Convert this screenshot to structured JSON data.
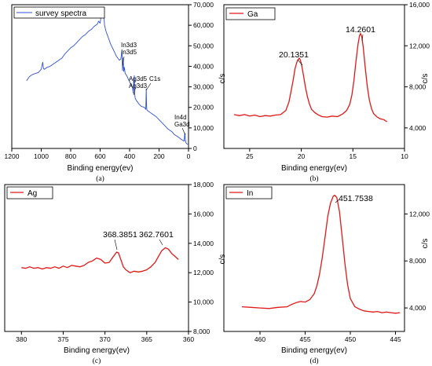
{
  "colors": {
    "survey": "#2f4fd6",
    "peak": "#e01818",
    "axis": "#000000"
  },
  "chart_data": [
    {
      "type": "line",
      "caption": "(a)",
      "legend": [
        "survey spectra"
      ],
      "xlabel": "Binding energy(ev)",
      "ylabel": "c/s",
      "xlim": [
        1200,
        0
      ],
      "ylim": [
        0,
        70000
      ],
      "xticks": [
        1200,
        1000,
        800,
        600,
        400,
        200,
        0
      ],
      "yticks": [
        0,
        10000,
        20000,
        30000,
        40000,
        50000,
        60000,
        70000
      ],
      "ytick_labels": [
        "0",
        "10,000",
        "20,000",
        "30,000",
        "40,000",
        "50,000",
        "60,000",
        "70,000"
      ],
      "series": [
        {
          "color": "#2f4fd6",
          "x": [
            1100,
            1080,
            1060,
            1040,
            1020,
            1000,
            990,
            985,
            980,
            960,
            940,
            920,
            900,
            880,
            860,
            840,
            820,
            800,
            780,
            760,
            740,
            720,
            700,
            680,
            660,
            640,
            620,
            610,
            600,
            595,
            590,
            585,
            580,
            575,
            570,
            560,
            550,
            540,
            530,
            520,
            510,
            500,
            490,
            480,
            470,
            460,
            452,
            448,
            444,
            440,
            436,
            430,
            420,
            410,
            400,
            390,
            380,
            375,
            372,
            370,
            368,
            366,
            362,
            355,
            345,
            335,
            320,
            300,
            290,
            287,
            285,
            283,
            280,
            270,
            260,
            250,
            240,
            230,
            220,
            200,
            180,
            160,
            140,
            120,
            110,
            100,
            90,
            80,
            70,
            60,
            50,
            40,
            30,
            25,
            22,
            20,
            18,
            15,
            10,
            5
          ],
          "y": [
            33000,
            35000,
            36000,
            36500,
            37000,
            38500,
            42000,
            39000,
            38500,
            39500,
            40000,
            41000,
            42000,
            43000,
            44000,
            46000,
            47500,
            49000,
            50000,
            51500,
            53000,
            54500,
            55500,
            57000,
            58000,
            59500,
            60500,
            62000,
            61000,
            63500,
            64500,
            64000,
            66000,
            65000,
            60000,
            57000,
            55000,
            53000,
            51000,
            49500,
            48000,
            46500,
            45000,
            44000,
            43000,
            43500,
            47500,
            38000,
            44000,
            37500,
            39500,
            36500,
            35500,
            34000,
            32500,
            31000,
            29500,
            27000,
            34500,
            30000,
            35500,
            27000,
            24500,
            23500,
            22500,
            21500,
            20500,
            20000,
            19000,
            29000,
            21000,
            19000,
            18500,
            18000,
            17500,
            17000,
            16500,
            16000,
            15500,
            14000,
            12500,
            11000,
            9500,
            8500,
            8000,
            7000,
            6500,
            6000,
            5500,
            5000,
            4500,
            4000,
            3500,
            7500,
            4500,
            3500,
            3000,
            2500,
            2200,
            2000
          ]
        }
      ],
      "annotations": [
        "In3d3",
        "In3d5",
        "Ag3d5",
        "Ag3d3",
        "C1s",
        "In4d",
        "Ga3d"
      ]
    },
    {
      "type": "line",
      "caption": "(b)",
      "legend": [
        "Ga"
      ],
      "xlabel": "Binding energy(ev)",
      "ylabel": "c/s",
      "xlim": [
        27.5,
        10
      ],
      "ylim": [
        2000,
        16000
      ],
      "xticks": [
        25,
        20,
        15,
        10
      ],
      "yticks": [
        4000,
        8000,
        12000,
        16000
      ],
      "ytick_labels": [
        "4,000",
        "8,000",
        "12,000",
        "16,000"
      ],
      "series": [
        {
          "color": "#e01818",
          "x": [
            26.5,
            26.0,
            25.5,
            25.0,
            24.5,
            24.0,
            23.5,
            23.0,
            22.5,
            22.0,
            21.5,
            21.2,
            21.0,
            20.8,
            20.6,
            20.4,
            20.2,
            20.13,
            20.0,
            19.8,
            19.6,
            19.4,
            19.2,
            19.0,
            18.7,
            18.4,
            18.0,
            17.5,
            17.0,
            16.5,
            16.0,
            15.6,
            15.3,
            15.1,
            14.9,
            14.7,
            14.5,
            14.35,
            14.26,
            14.15,
            14.0,
            13.8,
            13.6,
            13.4,
            13.2,
            13.0,
            12.7,
            12.4,
            12.0,
            11.7
          ],
          "y": [
            5300,
            5200,
            5300,
            5150,
            5250,
            5100,
            5200,
            5150,
            5250,
            5300,
            5700,
            6500,
            7500,
            8600,
            9800,
            10500,
            10800,
            10700,
            10300,
            9200,
            8000,
            7000,
            6300,
            5800,
            5500,
            5300,
            5100,
            5050,
            5150,
            5100,
            5350,
            5700,
            6300,
            7200,
            8600,
            10500,
            12200,
            13000,
            13200,
            12900,
            11900,
            9800,
            8000,
            6700,
            5900,
            5400,
            5100,
            4900,
            4800,
            4600
          ]
        }
      ],
      "annotations": [
        "20.1351",
        "14.2601"
      ]
    },
    {
      "type": "line",
      "caption": "(c)",
      "legend": [
        "Ag"
      ],
      "xlabel": "Binding energy(ev)",
      "ylabel": "c/s",
      "xlim": [
        382,
        360
      ],
      "ylim": [
        8000,
        18000
      ],
      "xticks": [
        380,
        375,
        370,
        365,
        360
      ],
      "yticks": [
        8000,
        10000,
        12000,
        14000,
        16000,
        18000
      ],
      "ytick_labels": [
        "8,000",
        "10,000",
        "12,000",
        "14,000",
        "16,000",
        "18,000"
      ],
      "series": [
        {
          "color": "#e01818",
          "x": [
            380,
            379.5,
            379,
            378.5,
            378,
            377.5,
            377,
            376.5,
            376,
            375.5,
            375,
            374.5,
            374,
            373.5,
            373,
            372.5,
            372,
            371.5,
            371,
            370.5,
            370,
            369.5,
            369,
            368.6,
            368.39,
            368.1,
            367.8,
            367.5,
            367,
            366.5,
            366,
            365.5,
            365,
            364.5,
            364,
            363.6,
            363.2,
            362.76,
            362.4,
            362,
            361.6,
            361.2
          ],
          "y": [
            12350,
            12300,
            12400,
            12300,
            12350,
            12250,
            12350,
            12300,
            12400,
            12300,
            12450,
            12350,
            12500,
            12450,
            12400,
            12500,
            12700,
            12800,
            13000,
            12900,
            12650,
            12700,
            13100,
            13400,
            13350,
            12900,
            12400,
            12200,
            12000,
            12100,
            12050,
            12100,
            12200,
            12400,
            12700,
            13100,
            13500,
            13700,
            13600,
            13300,
            13100,
            12900
          ]
        }
      ],
      "annotations": [
        "368.3851",
        "362.7601"
      ]
    },
    {
      "type": "line",
      "caption": "(d)",
      "legend": [
        "In"
      ],
      "xlabel": "Binding energy(ev)",
      "ylabel": "c/s",
      "xlim": [
        464,
        444
      ],
      "ylim": [
        2000,
        14500
      ],
      "xticks": [
        460,
        455,
        450,
        445
      ],
      "yticks": [
        4000,
        8000,
        12000
      ],
      "ytick_labels": [
        "4,000",
        "8,000",
        "12,000"
      ],
      "series": [
        {
          "color": "#e01818",
          "x": [
            462,
            461,
            460,
            459,
            458,
            457,
            456.5,
            456,
            455.5,
            455,
            454.5,
            454,
            453.7,
            453.4,
            453.1,
            452.8,
            452.5,
            452.2,
            451.9,
            451.75,
            451.5,
            451.2,
            450.9,
            450.6,
            450.3,
            450,
            449.5,
            449,
            448.5,
            448,
            447.5,
            447,
            446.5,
            446,
            445.5,
            445,
            444.5
          ],
          "y": [
            4100,
            4050,
            4000,
            3950,
            4050,
            4100,
            4300,
            4450,
            4550,
            4500,
            4700,
            5200,
            5900,
            6900,
            8300,
            10000,
            11800,
            12900,
            13500,
            13600,
            13400,
            12200,
            10000,
            7800,
            6000,
            4800,
            4100,
            3900,
            3750,
            3700,
            3650,
            3700,
            3600,
            3650,
            3600,
            3550,
            3600
          ]
        }
      ],
      "annotations": [
        "451.7538"
      ]
    }
  ]
}
